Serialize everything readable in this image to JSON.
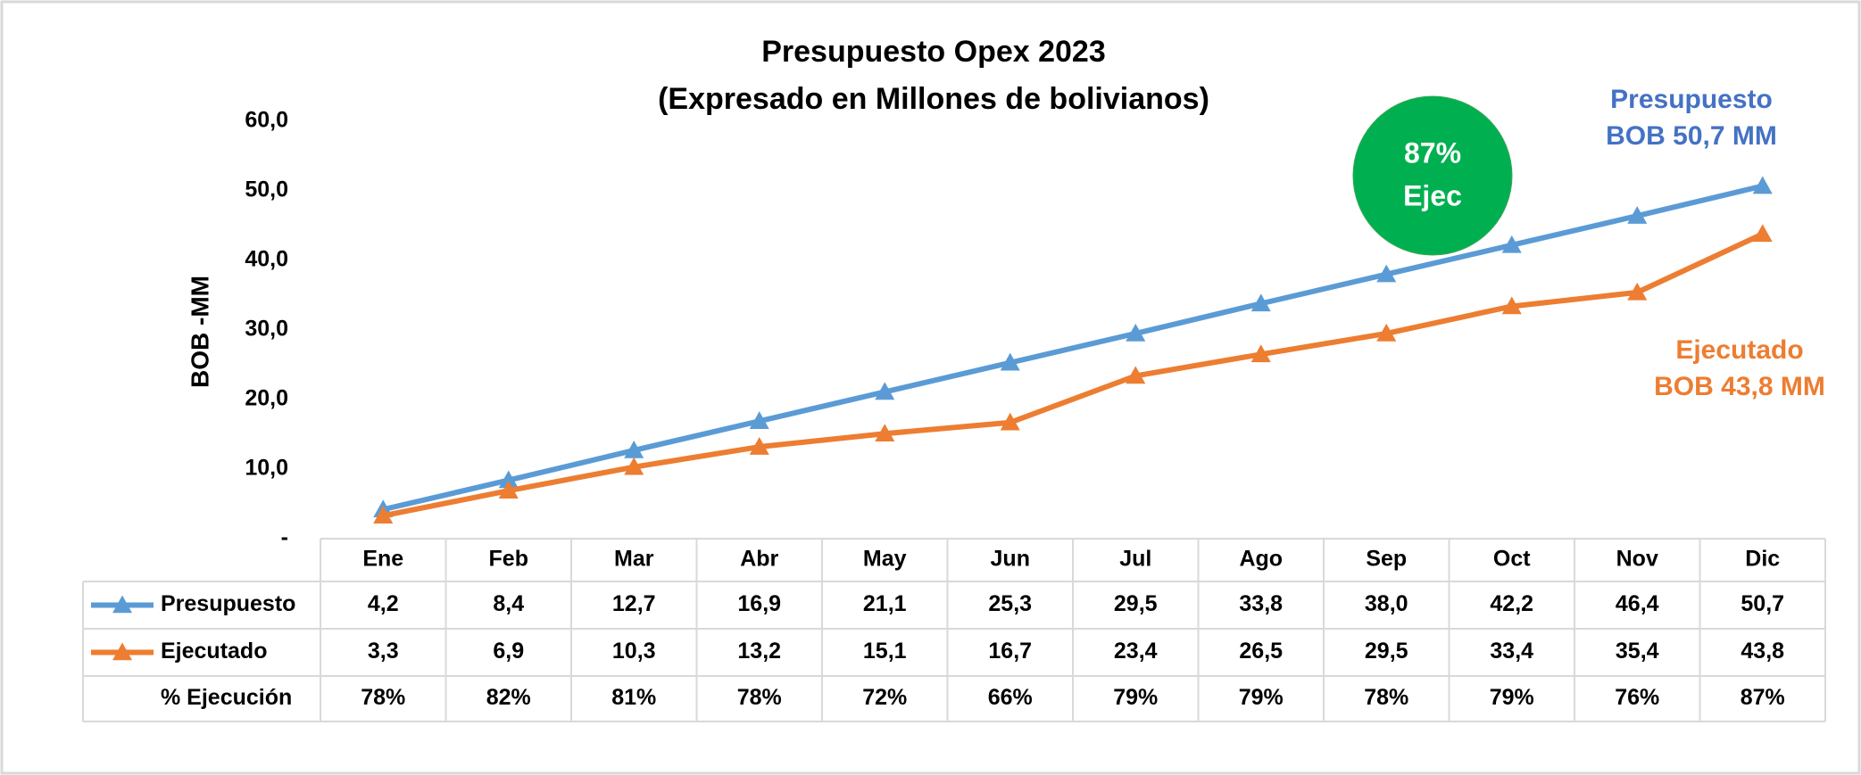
{
  "chart_data": {
    "type": "line",
    "title": "Presupuesto Opex 2023",
    "subtitle": "(Expresado en Millones de bolivianos)",
    "ylabel": "BOB -MM",
    "categories": [
      "Ene",
      "Feb",
      "Mar",
      "Abr",
      "May",
      "Jun",
      "Jul",
      "Ago",
      "Sep",
      "Oct",
      "Nov",
      "Dic"
    ],
    "series": [
      {
        "name": "Presupuesto",
        "color": "#5b9bd5",
        "values": [
          4.2,
          8.4,
          12.7,
          16.9,
          21.1,
          25.3,
          29.5,
          33.8,
          38.0,
          42.2,
          46.4,
          50.7
        ],
        "value_labels": [
          "4,2",
          "8,4",
          "12,7",
          "16,9",
          "21,1",
          "25,3",
          "29,5",
          "33,8",
          "38,0",
          "42,2",
          "46,4",
          "50,7"
        ]
      },
      {
        "name": "Ejecutado",
        "color": "#ed7d31",
        "values": [
          3.3,
          6.9,
          10.3,
          13.2,
          15.1,
          16.7,
          23.4,
          26.5,
          29.5,
          33.4,
          35.4,
          43.8
        ],
        "value_labels": [
          "3,3",
          "6,9",
          "10,3",
          "13,2",
          "15,1",
          "16,7",
          "23,4",
          "26,5",
          "29,5",
          "33,4",
          "35,4",
          "43,8"
        ]
      }
    ],
    "pct_row": {
      "name": "% Ejecución",
      "values": [
        78,
        82,
        81,
        78,
        72,
        66,
        79,
        79,
        78,
        79,
        76,
        87
      ],
      "value_labels": [
        "78%",
        "82%",
        "81%",
        "78%",
        "72%",
        "66%",
        "79%",
        "79%",
        "78%",
        "79%",
        "76%",
        "87%"
      ]
    },
    "ylim": [
      0,
      60
    ],
    "yticks": [
      {
        "value": 0,
        "label": "-"
      },
      {
        "value": 10,
        "label": "10,0"
      },
      {
        "value": 20,
        "label": "20,0"
      },
      {
        "value": 30,
        "label": "30,0"
      },
      {
        "value": 40,
        "label": "40,0"
      },
      {
        "value": 50,
        "label": "50,0"
      },
      {
        "value": 60,
        "label": "60,0"
      }
    ],
    "grid": false,
    "annotations": {
      "badge": [
        "87%",
        "Ejec"
      ],
      "presupuesto": [
        "Presupuesto",
        "BOB 50,7 MM"
      ],
      "ejecutado": [
        "Ejecutado",
        "BOB 43,8 MM"
      ]
    }
  }
}
